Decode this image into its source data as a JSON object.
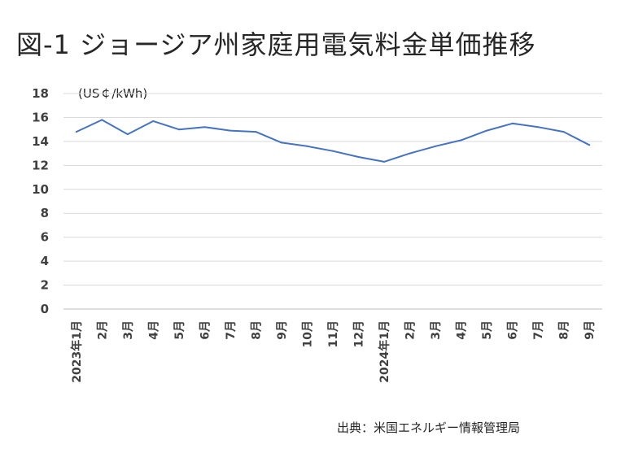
{
  "chart_data": {
    "type": "line",
    "title": "図-1 ジョージア州家庭用電気料金単価推移",
    "ylabel": "(US￠/kWh)",
    "ylim": [
      0,
      18
    ],
    "yticks": [
      0,
      2,
      4,
      6,
      8,
      10,
      12,
      14,
      16,
      18
    ],
    "grid": true,
    "categories": [
      "2023年1月",
      "2月",
      "3月",
      "4月",
      "5月",
      "6月",
      "7月",
      "8月",
      "9月",
      "10月",
      "11月",
      "12月",
      "2024年1月",
      "2月",
      "3月",
      "4月",
      "5月",
      "6月",
      "7月",
      "8月",
      "9月"
    ],
    "series": [
      {
        "values": [
          14.8,
          15.8,
          14.6,
          15.7,
          15.0,
          15.2,
          14.9,
          14.8,
          13.9,
          13.6,
          13.2,
          12.7,
          12.3,
          13.0,
          13.6,
          14.1,
          14.9,
          15.5,
          15.2,
          14.8,
          13.7
        ],
        "color": "#4472c4"
      }
    ]
  },
  "source": "出典：米国エネルギー情報管理局",
  "colors": {
    "line": "#4472c4",
    "grid": "#d9d9d9",
    "text": "#404040"
  }
}
